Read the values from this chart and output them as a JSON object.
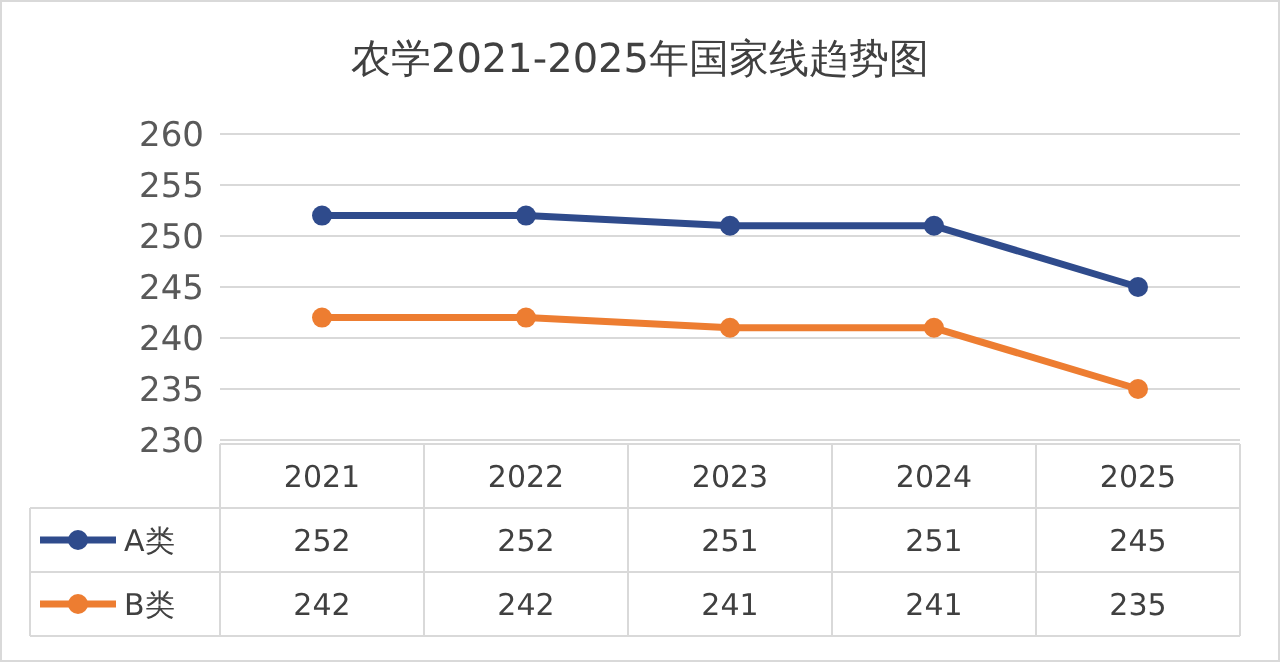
{
  "chart_data": {
    "type": "line",
    "title": "农学2021-2025年国家线趋势图",
    "categories": [
      "2021",
      "2022",
      "2023",
      "2024",
      "2025"
    ],
    "series": [
      {
        "name": "A类",
        "color": "#2f4b8c",
        "values": [
          252,
          252,
          251,
          251,
          245
        ]
      },
      {
        "name": "B类",
        "color": "#ed7d31",
        "values": [
          242,
          242,
          241,
          241,
          235
        ]
      }
    ],
    "ylim": [
      230,
      260
    ],
    "yticks": [
      230,
      235,
      240,
      245,
      250,
      255,
      260
    ],
    "grid": "y",
    "marker": "circle",
    "line_style": "solid",
    "data_labels": true,
    "legend": "bottom"
  }
}
